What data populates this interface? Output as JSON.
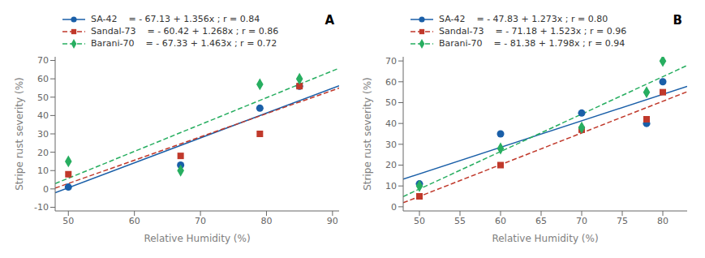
{
  "chart_data": [
    {
      "type": "scatter",
      "title": "A",
      "xlabel": "Relative Humidity (%)",
      "ylabel": "Stripe rust severity (%)",
      "xlim": [
        48,
        91
      ],
      "ylim": [
        -12,
        72
      ],
      "xticks": [
        50,
        60,
        70,
        80,
        90
      ],
      "yticks": [
        -10,
        0,
        10,
        20,
        30,
        40,
        50,
        60,
        70
      ],
      "legend": "upper left",
      "series": [
        {
          "name": "SA-42    = - 67.13 + 1.356x ; r = 0.84",
          "color": "#1a5fa8",
          "marker": "circle",
          "line_style": "solid",
          "x": [
            50,
            67,
            79,
            85
          ],
          "values": [
            1,
            13,
            44,
            56
          ],
          "fit": {
            "x": [
              48,
              91
            ],
            "values": [
              -2.042,
              56.266
            ]
          }
        },
        {
          "name": "Sandal-73    = - 60.42 + 1.268x ; r = 0.86",
          "color": "#c0392b",
          "marker": "square",
          "line_style": "dashed",
          "x": [
            50,
            67,
            79,
            85
          ],
          "values": [
            8,
            18,
            30,
            56
          ],
          "fit": {
            "x": [
              48,
              91
            ],
            "values": [
              0.444,
              54.968
            ]
          }
        },
        {
          "name": "Barani-70    = - 67.33 + 1.463x ; r = 0.72",
          "color": "#27ae60",
          "marker": "diamond",
          "line_style": "dashed",
          "x": [
            50,
            67,
            79,
            85
          ],
          "values": [
            15,
            10,
            57,
            60
          ],
          "fit": {
            "x": [
              48,
              91
            ],
            "values": [
              2.894,
              65.803
            ]
          }
        }
      ]
    },
    {
      "type": "scatter",
      "title": "B",
      "xlabel": "Relative Humidity (%)",
      "ylabel": "Stripe rust severity (%)",
      "xlim": [
        48,
        83
      ],
      "ylim": [
        -2,
        72
      ],
      "xticks": [
        50,
        55,
        60,
        65,
        70,
        75,
        80
      ],
      "yticks": [
        0,
        10,
        20,
        30,
        40,
        50,
        60,
        70
      ],
      "legend": "upper left",
      "series": [
        {
          "name": "SA-42    = - 47.83 + 1.273x ; r = 0.80",
          "color": "#1a5fa8",
          "marker": "circle",
          "line_style": "solid",
          "x": [
            50,
            60,
            70,
            78,
            80
          ],
          "values": [
            11,
            35,
            45,
            40,
            60
          ],
          "fit": {
            "x": [
              48,
              83
            ],
            "values": [
              13.274,
              57.829
            ]
          }
        },
        {
          "name": "Sandal-73    = - 71.18 + 1.523x ; r = 0.96",
          "color": "#c0392b",
          "marker": "square",
          "line_style": "dashed",
          "x": [
            50,
            60,
            70,
            78,
            80
          ],
          "values": [
            5,
            20,
            37,
            42,
            55
          ],
          "fit": {
            "x": [
              48,
              83
            ],
            "values": [
              1.924,
              55.229
            ]
          }
        },
        {
          "name": "Barani-70    = - 81.38 + 1.798x ; r = 0.94",
          "color": "#27ae60",
          "marker": "diamond",
          "line_style": "dashed",
          "x": [
            50,
            60,
            70,
            78,
            80
          ],
          "values": [
            10,
            28,
            38,
            55,
            70
          ],
          "fit": {
            "x": [
              48,
              83
            ],
            "values": [
              4.924,
              67.854
            ]
          }
        }
      ]
    }
  ]
}
